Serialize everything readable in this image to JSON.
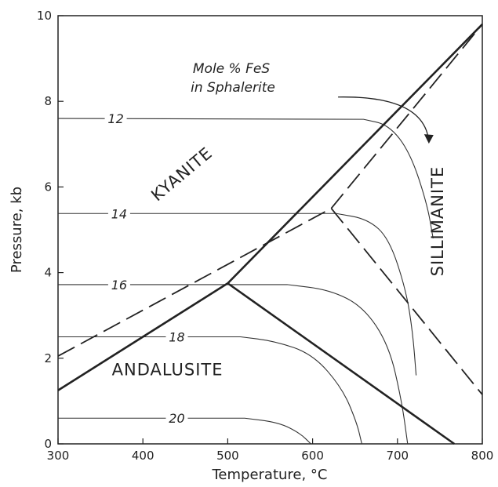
{
  "chart_data": {
    "type": "line",
    "title": "",
    "xlabel": "Temperature, °C",
    "ylabel": "Pressure, kb",
    "xlim": [
      300,
      800
    ],
    "ylim": [
      0,
      10
    ],
    "xticks": [
      "300",
      "400",
      "500",
      "600",
      "700",
      "800"
    ],
    "yticks": [
      "0",
      "2",
      "4",
      "6",
      "8",
      "10"
    ],
    "grid": false,
    "fields": [
      {
        "label": "KYANITE",
        "x": 450,
        "y": 6.2,
        "rotate": -40
      },
      {
        "label": "ANDALUSITE",
        "x": 429,
        "y": 1.6,
        "rotate": 0
      },
      {
        "label": "SILLIMANITE",
        "x": 754,
        "y": 5.2,
        "rotate": -90
      }
    ],
    "annotation": {
      "line1": "Mole % FeS",
      "line2": "in Sphalerite",
      "anchor": [
        630,
        8.1
      ],
      "target": [
        737,
        7.05
      ]
    },
    "boundaries": [
      {
        "name": "solid",
        "style": "solid",
        "points": [
          [
            300,
            1.25
          ],
          [
            500,
            3.75
          ],
          [
            800,
            9.8
          ]
        ]
      },
      {
        "name": "solid",
        "style": "solid",
        "points": [
          [
            500,
            3.75
          ],
          [
            767,
            0
          ]
        ]
      },
      {
        "name": "dashed",
        "style": "dashed",
        "points": [
          [
            300,
            2.05
          ],
          [
            622,
            5.5
          ],
          [
            800,
            9.8
          ]
        ]
      },
      {
        "name": "dashed",
        "style": "dashed",
        "points": [
          [
            622,
            5.5
          ],
          [
            800,
            1.15
          ]
        ]
      }
    ],
    "series": [
      {
        "label": "12",
        "label_x": 368,
        "points": [
          [
            300,
            7.6
          ],
          [
            660,
            7.58
          ],
          [
            690,
            7.45
          ],
          [
            715,
            6.8
          ],
          [
            735,
            5.6
          ],
          [
            742,
            4.8
          ]
        ]
      },
      {
        "label": "14",
        "label_x": 372,
        "points": [
          [
            300,
            5.38
          ],
          [
            628,
            5.38
          ],
          [
            665,
            5.25
          ],
          [
            690,
            4.8
          ],
          [
            710,
            3.6
          ],
          [
            718,
            2.6
          ],
          [
            722,
            1.6
          ]
        ]
      },
      {
        "label": "16",
        "label_x": 372,
        "points": [
          [
            300,
            3.72
          ],
          [
            570,
            3.72
          ],
          [
            620,
            3.6
          ],
          [
            660,
            3.2
          ],
          [
            690,
            2.3
          ],
          [
            705,
            1.0
          ],
          [
            712,
            0.0
          ]
        ]
      },
      {
        "label": "18",
        "label_x": 440,
        "points": [
          [
            300,
            2.5
          ],
          [
            515,
            2.5
          ],
          [
            555,
            2.4
          ],
          [
            600,
            2.1
          ],
          [
            635,
            1.3
          ],
          [
            652,
            0.5
          ],
          [
            658,
            0.0
          ]
        ]
      },
      {
        "label": "20",
        "label_x": 440,
        "points": [
          [
            300,
            0.6
          ],
          [
            520,
            0.6
          ],
          [
            560,
            0.5
          ],
          [
            585,
            0.25
          ],
          [
            598,
            0.0
          ]
        ]
      }
    ]
  }
}
